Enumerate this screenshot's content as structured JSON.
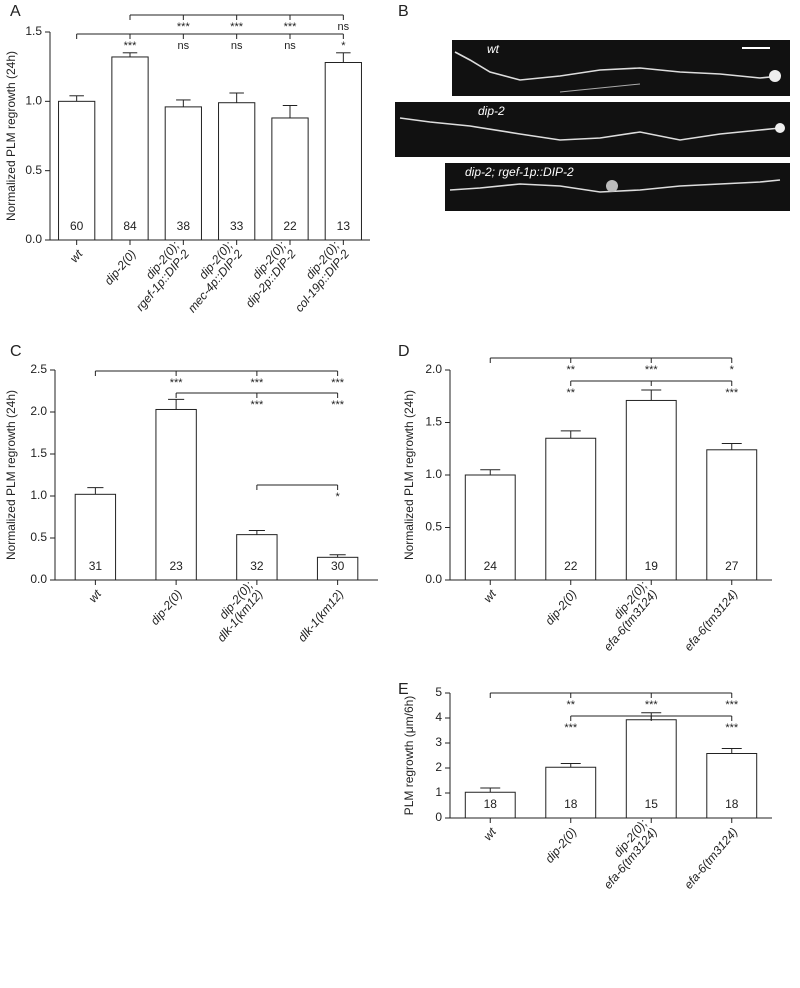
{
  "chart_data": [
    {
      "type": "bar",
      "panel": "A",
      "ylabel": "Normalized PLM regrowth (24h)",
      "categories": [
        "wt",
        "dip-2(0)",
        [
          "dip-2(0);",
          "rgef-1p::DIP-2"
        ],
        [
          "dip-2(0);",
          "mec-4p::DIP-2"
        ],
        [
          "dip-2(0);",
          "dip-2p::DIP-2"
        ],
        [
          "dip-2(0);",
          "col-19p::DIP-2"
        ]
      ],
      "values": [
        1.0,
        1.32,
        0.96,
        0.99,
        0.88,
        1.28
      ],
      "errors": [
        0.04,
        0.03,
        0.05,
        0.07,
        0.09,
        0.07
      ],
      "n": [
        60,
        84,
        38,
        33,
        22,
        13
      ],
      "color": "#ffffff",
      "ylim": [
        0,
        1.5
      ],
      "yticks": [
        {
          "value": 0,
          "label": "0.0"
        },
        0.5,
        {
          "value": 1,
          "label": "1.0"
        },
        1.5
      ],
      "brackets": [
        {
          "ref": 1,
          "labels": [
            null,
            null,
            "***",
            "***",
            "***",
            "ns"
          ]
        },
        {
          "ref": 0,
          "labels": [
            null,
            "***",
            "ns",
            "ns",
            "ns",
            "*"
          ]
        }
      ]
    },
    {
      "type": "bar",
      "panel": "C",
      "ylabel": "Normalized PLM regrowth (24h)",
      "categories": [
        "wt",
        "dip-2(0)",
        [
          "dip-2(0);",
          "dlk-1(km12)"
        ],
        "dlk-1(km12)"
      ],
      "values": [
        1.02,
        2.03,
        0.54,
        0.27
      ],
      "errors": [
        0.08,
        0.12,
        0.05,
        0.03
      ],
      "n": [
        31,
        23,
        32,
        30
      ],
      "color": "#ffffff",
      "ylim": [
        0,
        2.5
      ],
      "yticks": [
        {
          "value": 0,
          "label": "0.0"
        },
        0.5,
        {
          "value": 1,
          "label": "1.0"
        },
        1.5,
        {
          "value": 2,
          "label": "2.0"
        },
        2.5
      ],
      "brackets": [
        {
          "ref": 0,
          "labels": [
            null,
            "***",
            "***",
            "***"
          ]
        },
        {
          "ref": 1,
          "labels": [
            null,
            null,
            "***",
            "***"
          ]
        },
        {
          "ref": 2,
          "labels": [
            null,
            null,
            null,
            "*"
          ]
        }
      ]
    },
    {
      "type": "bar",
      "panel": "D",
      "ylabel": "Normalized PLM regrowth (24h)",
      "categories": [
        "wt",
        "dip-2(0)",
        [
          "dip-2(0);",
          "efa-6(tm3124)"
        ],
        "efa-6(tm3124)"
      ],
      "values": [
        1.0,
        1.35,
        1.71,
        1.24
      ],
      "errors": [
        0.05,
        0.07,
        0.1,
        0.06
      ],
      "n": [
        24,
        22,
        19,
        27
      ],
      "color": "#ffffff",
      "ylim": [
        0,
        2
      ],
      "yticks": [
        {
          "value": 0,
          "label": "0.0"
        },
        0.5,
        {
          "value": 1,
          "label": "1.0"
        },
        1.5,
        {
          "value": 2,
          "label": "2.0"
        }
      ],
      "brackets": [
        {
          "ref": 0,
          "labels": [
            null,
            "**",
            "***",
            "*"
          ]
        },
        {
          "ref": 2,
          "labels": [
            null,
            "**",
            null,
            "***"
          ]
        }
      ]
    },
    {
      "type": "bar",
      "panel": "E",
      "ylabel": "PLM regrowth (μm/6h)",
      "categories": [
        "wt",
        "dip-2(0)",
        [
          "dip-2(0);",
          "efa-6(tm3124)"
        ],
        "efa-6(tm3124)"
      ],
      "values": [
        1.03,
        2.03,
        3.93,
        2.58
      ],
      "errors": [
        0.17,
        0.15,
        0.28,
        0.2
      ],
      "n": [
        18,
        18,
        15,
        18
      ],
      "color": "#ffffff",
      "ylim": [
        0,
        5
      ],
      "yticks": [
        0,
        1,
        2,
        3,
        4,
        5
      ],
      "brackets": [
        {
          "ref": 0,
          "labels": [
            null,
            "**",
            "***",
            "***"
          ]
        },
        {
          "ref": 2,
          "labels": [
            null,
            "***",
            null,
            "***"
          ]
        }
      ]
    }
  ],
  "images": {
    "panel": "B",
    "labels": [
      "wt",
      "dip-2",
      "dip-2; rgef-1p::DIP-2"
    ]
  }
}
